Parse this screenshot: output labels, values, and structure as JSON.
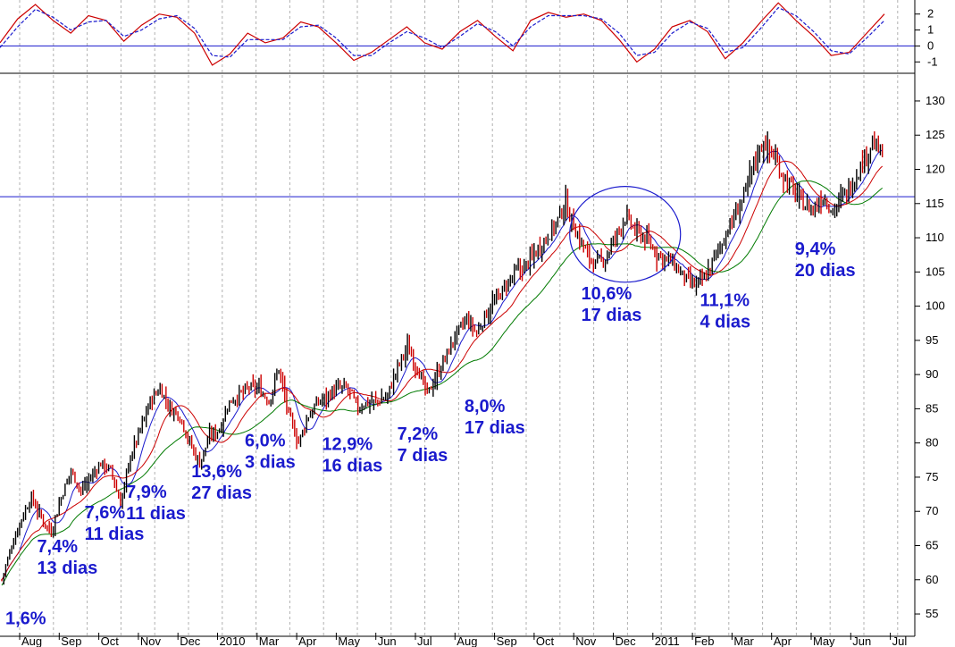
{
  "colors": {
    "background": "#ffffff",
    "grid": "#b0b0b0",
    "axis": "#000000",
    "horizontal_line": "#1a1acd",
    "annotation": "#1a1acd",
    "bar_up": "#000000",
    "bar_down": "#cc0000",
    "ma_short": "#1a1acd",
    "ma_mid": "#cc0000",
    "ma_long": "#007a00",
    "oscillator_solid": "#cc0000",
    "oscillator_dashed": "#1a1acd"
  },
  "chart_data": [
    {
      "type": "line",
      "panel": "oscillator",
      "y_ticks": [
        "2",
        "1",
        "0",
        "-1"
      ],
      "ylim": [
        -1.6,
        2.6
      ],
      "zero_line": true,
      "x": [
        0,
        10,
        20,
        30,
        40,
        50,
        60,
        70,
        80,
        90,
        100,
        110,
        120,
        130,
        140,
        150,
        160,
        170,
        180,
        190,
        200,
        210,
        220,
        230,
        240,
        250,
        260,
        270,
        280,
        290,
        300,
        310,
        320,
        330,
        340,
        350,
        360,
        370,
        380,
        390,
        400,
        410,
        420,
        430,
        440,
        450,
        460,
        470,
        480,
        490,
        500
      ],
      "series": [
        {
          "style": "solid",
          "color": "oscillator_solid",
          "values": [
            0.2,
            1.7,
            2.6,
            1.6,
            0.8,
            1.9,
            1.6,
            0.3,
            1.3,
            2.0,
            1.8,
            0.8,
            -1.2,
            -0.5,
            0.8,
            0.2,
            0.5,
            1.5,
            1.2,
            0.2,
            -0.9,
            -0.4,
            0.4,
            1.2,
            0.2,
            -0.2,
            0.9,
            1.6,
            0.6,
            -0.3,
            1.6,
            2.1,
            1.8,
            2.0,
            1.6,
            0.4,
            -1.0,
            -0.2,
            1.2,
            1.6,
            0.9,
            -0.8,
            0.2,
            1.5,
            2.7,
            1.6,
            0.6,
            -0.6,
            -0.4,
            0.8,
            2.0
          ]
        },
        {
          "style": "dashed",
          "color": "oscillator_dashed",
          "values": [
            -0.1,
            1.2,
            2.3,
            1.8,
            1.0,
            1.5,
            1.6,
            0.6,
            1.0,
            1.7,
            1.9,
            1.1,
            -0.6,
            -0.7,
            0.4,
            0.4,
            0.4,
            1.2,
            1.3,
            0.5,
            -0.6,
            -0.6,
            0.2,
            0.9,
            0.5,
            -0.1,
            0.6,
            1.4,
            0.9,
            0.0,
            1.2,
            1.9,
            1.9,
            1.9,
            1.7,
            0.8,
            -0.6,
            -0.4,
            0.8,
            1.5,
            1.1,
            -0.4,
            -0.1,
            1.1,
            2.4,
            1.9,
            0.9,
            -0.3,
            -0.5,
            0.5,
            1.6
          ]
        }
      ]
    },
    {
      "type": "bar",
      "panel": "price",
      "ylim": [
        52,
        133
      ],
      "y_ticks": [
        55,
        60,
        65,
        70,
        75,
        80,
        85,
        90,
        95,
        100,
        105,
        110,
        115,
        120,
        125,
        130
      ],
      "x_months": [
        "Aug",
        "Sep",
        "Oct",
        "Nov",
        "Dec",
        "2010",
        "Mar",
        "Apr",
        "May",
        "Jun",
        "Jul",
        "Aug",
        "Sep",
        "Oct",
        "Nov",
        "Dec",
        "2011",
        "Feb",
        "Mar",
        "Apr",
        "May",
        "Jun",
        "Jul"
      ],
      "month_positions": [
        0,
        20,
        40,
        60,
        80,
        100,
        120,
        140,
        160,
        180,
        200,
        220,
        240,
        260,
        280,
        300,
        320,
        340,
        360,
        380,
        400,
        420,
        440
      ],
      "horizontal_line": 116,
      "close_anchors": {
        "x": [
          0,
          5,
          10,
          15,
          20,
          25,
          30,
          35,
          40,
          45,
          50,
          55,
          60,
          65,
          70,
          75,
          80,
          85,
          90,
          95,
          100,
          105,
          110,
          115,
          120,
          125,
          130,
          135,
          140,
          145,
          150,
          155,
          160,
          165,
          170,
          175,
          180,
          185,
          190,
          195,
          200,
          205,
          210,
          215,
          220,
          225,
          230,
          235,
          240,
          245,
          250,
          255,
          260,
          265,
          270,
          275,
          280,
          285,
          290,
          295,
          300,
          305,
          310,
          315,
          320,
          325,
          330,
          335,
          340,
          345,
          350,
          355,
          360,
          365,
          370,
          375,
          380,
          385,
          390,
          395,
          400,
          405,
          410,
          415,
          420,
          425,
          430,
          435,
          440,
          445
        ],
        "values": [
          60,
          65,
          69,
          72,
          69,
          67,
          72,
          76,
          73,
          75,
          77,
          76,
          71,
          78,
          82,
          86,
          88,
          85,
          84,
          80,
          77,
          81,
          82,
          86,
          87,
          88,
          88,
          86,
          91,
          84,
          80,
          84,
          86,
          87,
          88,
          88,
          85,
          86,
          86,
          87,
          91,
          94,
          91,
          87,
          90,
          93,
          96,
          98,
          96,
          99,
          101,
          103,
          105,
          106,
          108,
          110,
          112,
          115,
          111,
          108,
          106,
          107,
          110,
          113,
          111,
          110,
          108,
          107,
          106,
          104,
          103,
          104,
          107,
          110,
          113,
          116,
          121,
          124,
          122,
          119,
          117,
          115,
          114,
          116,
          114,
          116,
          118,
          121,
          124,
          122
        ]
      },
      "moving_averages": [
        {
          "name": "ma_short",
          "color": "ma_short"
        },
        {
          "name": "ma_mid",
          "color": "ma_mid"
        },
        {
          "name": "ma_long",
          "color": "ma_long"
        }
      ],
      "ellipse_annotation": {
        "x_center": 315,
        "y_center": 110.5,
        "x_radius": 28,
        "y_radius": 7
      }
    }
  ],
  "annotations": [
    {
      "pct": "1,6%",
      "days": "",
      "x": 0,
      "y": 53.5
    },
    {
      "pct": "7,4%",
      "days": "13 dias",
      "x": 16,
      "y": 64
    },
    {
      "pct": "7,6%",
      "days": "11 dias",
      "x": 40,
      "y": 69
    },
    {
      "pct": "7,9%",
      "days": "11 dias",
      "x": 61,
      "y": 72
    },
    {
      "pct": "13,6%",
      "days": "27 dias",
      "x": 94,
      "y": 75
    },
    {
      "pct": "6,0%",
      "days": "3 dias",
      "x": 121,
      "y": 79.5
    },
    {
      "pct": "12,9%",
      "days": "16 dias",
      "x": 160,
      "y": 79
    },
    {
      "pct": "7,2%",
      "days": "7 dias",
      "x": 198,
      "y": 80.5
    },
    {
      "pct": "8,0%",
      "days": "17 dias",
      "x": 232,
      "y": 84.5
    },
    {
      "pct": "10,6%",
      "days": "17 dias",
      "x": 291,
      "y": 101
    },
    {
      "pct": "11,1%",
      "days": "4 dias",
      "x": 351,
      "y": 100
    },
    {
      "pct": "9,4%",
      "days": "20 dias",
      "x": 399,
      "y": 107.5
    }
  ]
}
